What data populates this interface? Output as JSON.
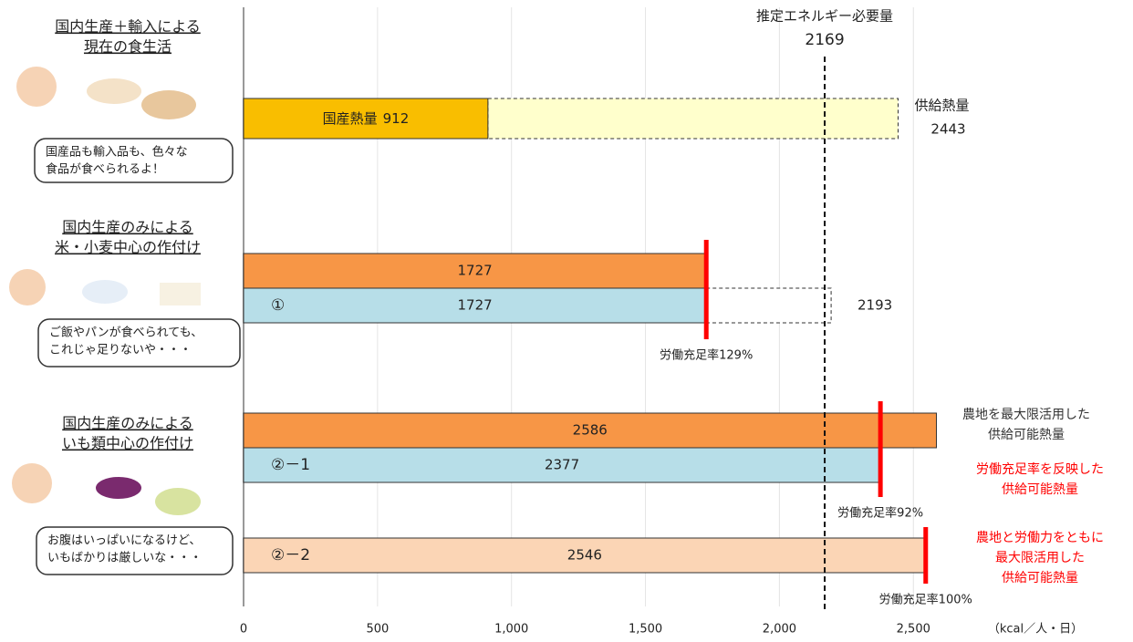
{
  "chart_data": {
    "type": "bar",
    "orientation": "horizontal",
    "xlim": [
      0,
      2700
    ],
    "xticks": [
      0,
      500,
      {
        "value": 1000,
        "label": "1,000"
      },
      {
        "value": 1500,
        "label": "1,500"
      },
      {
        "value": 2000,
        "label": "2,000"
      },
      {
        "value": 2500,
        "label": "2,500"
      }
    ],
    "x_unit": "（kcal／人・日）",
    "grid": true,
    "reference_line": {
      "value": 2169,
      "label": "推定エネルギー必要量"
    },
    "groups": [
      {
        "title": [
          "国内生産＋輸入による",
          "現在の食生活"
        ],
        "bubble": [
          "国産品も輸入品も、色々な",
          "食品が食べられるよ！"
        ],
        "bars": [
          {
            "name": "国産熱量",
            "value": 912,
            "color": "#f9be00",
            "extension": {
              "name": "供給熱量",
              "value": 2443,
              "color": "#ffffcc"
            }
          }
        ],
        "markers": []
      },
      {
        "title": [
          "国内生産のみによる",
          "米・小麦中心の作付け"
        ],
        "bubble": [
          "ご飯やパンが食べられても、",
          "これじゃ足りないや・・・"
        ],
        "bars": [
          {
            "value": 1727,
            "color": "#f79646"
          },
          {
            "tag": "①",
            "value": 1727,
            "color": "#b7dee8",
            "extension": {
              "value": 2193,
              "color": "#ffffff"
            }
          }
        ],
        "markers": [
          {
            "value": 1727,
            "label": "労働充足率129%"
          }
        ]
      },
      {
        "title": [
          "国内生産のみによる",
          "いも類中心の作付け"
        ],
        "bubble": [
          "お腹はいっぱいになるけど、",
          "いもばかりは厳しいな・・・"
        ],
        "bars": [
          {
            "value": 2586,
            "color": "#f79646"
          },
          {
            "tag": "②－1",
            "value": 2377,
            "color": "#b7dee8"
          },
          {
            "tag": "②－2",
            "value": 2546,
            "color": "#fbd5b5"
          }
        ],
        "markers": [
          {
            "value": 2377,
            "label": "労働充足率92%"
          },
          {
            "value": 2546,
            "label": "労働充足率100%"
          }
        ]
      }
    ],
    "annotations": [
      {
        "lines": [
          "農地を最大限活用した",
          "供給可能熱量"
        ],
        "color": "#333333"
      },
      {
        "lines": [
          "労働充足率を反映した",
          "供給可能熱量"
        ],
        "color": "#ff0000"
      },
      {
        "lines": [
          "農地と労働力をともに",
          "最大限活用した",
          "供給可能熱量"
        ],
        "color": "#ff0000"
      }
    ]
  }
}
